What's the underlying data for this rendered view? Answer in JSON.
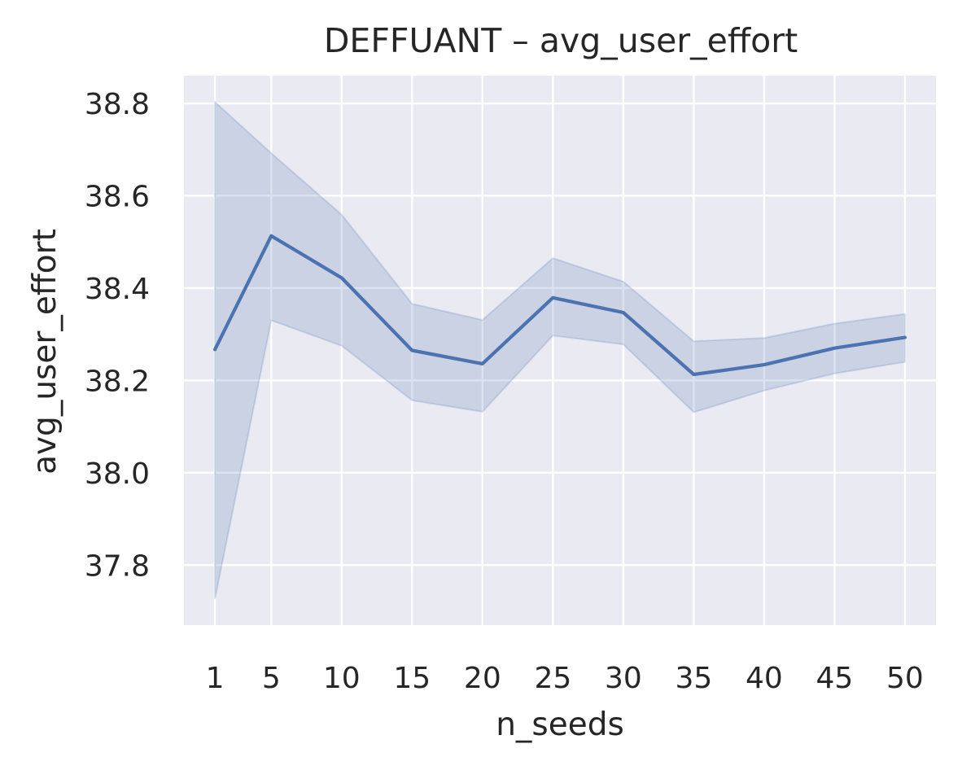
{
  "chart_data": {
    "type": "line",
    "title": "DEFFUANT – avg_user_effort",
    "xlabel": "n_seeds",
    "ylabel": "avg_user_effort",
    "x": [
      1,
      5,
      10,
      15,
      20,
      25,
      30,
      35,
      40,
      45,
      50
    ],
    "xticks": [
      "1",
      "5",
      "10",
      "15",
      "20",
      "25",
      "30",
      "35",
      "40",
      "45",
      "50"
    ],
    "yticks": [
      "37.8",
      "38.0",
      "38.2",
      "38.4",
      "38.6",
      "38.8"
    ],
    "ylim": [
      37.67,
      38.86
    ],
    "grid": true,
    "series": [
      {
        "values": [
          38.267,
          38.513,
          38.422,
          38.265,
          38.236,
          38.379,
          38.347,
          38.213,
          38.234,
          38.27,
          38.293
        ],
        "ci_lower": [
          37.727,
          38.33,
          38.275,
          38.157,
          38.132,
          38.297,
          38.278,
          38.131,
          38.178,
          38.215,
          38.24
        ],
        "ci_upper": [
          38.803,
          38.692,
          38.559,
          38.366,
          38.331,
          38.465,
          38.414,
          38.285,
          38.292,
          38.323,
          38.344
        ],
        "color": "#4c72b0"
      }
    ],
    "colors": {
      "background": "#eaeaf2",
      "grid": "#ffffff",
      "text": "#262626"
    }
  }
}
